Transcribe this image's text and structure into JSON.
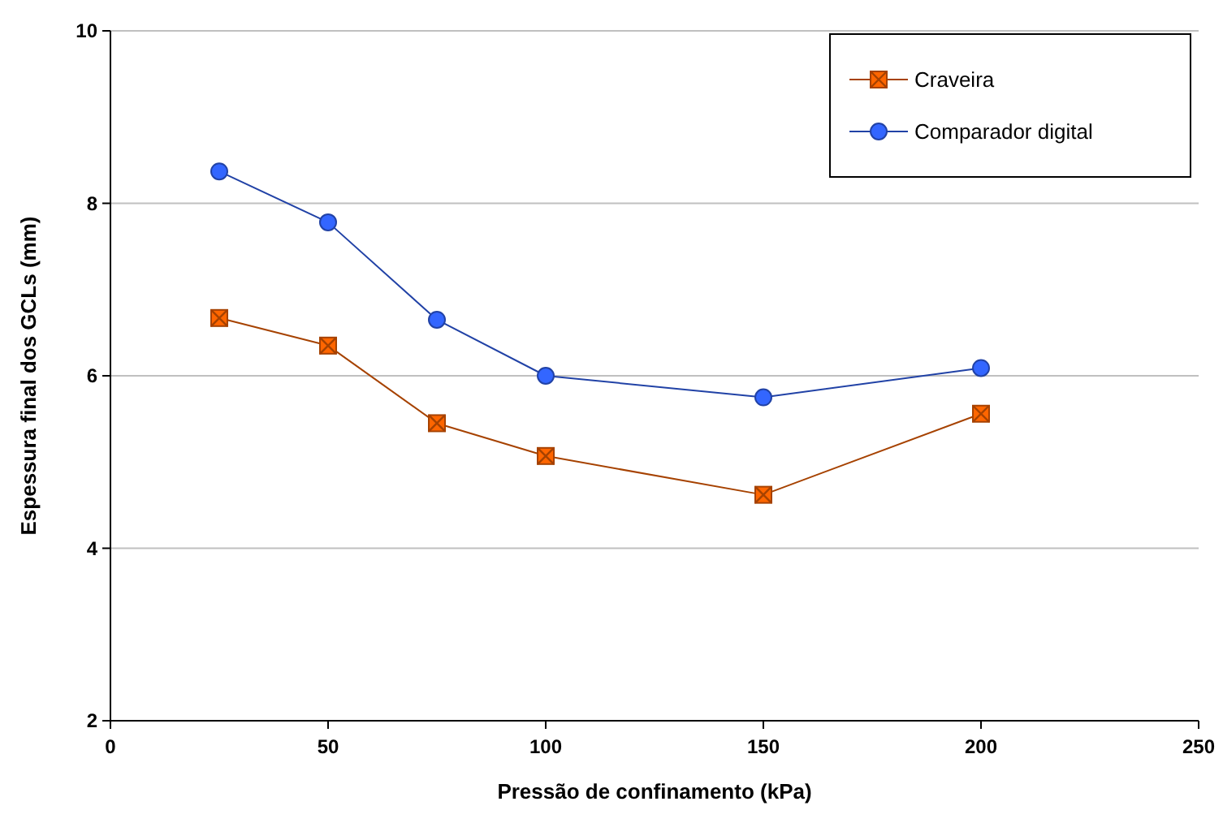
{
  "chart_data": {
    "type": "line",
    "xlabel": "Pressão de confinamento (kPa)",
    "ylabel": "Espessura final dos GCLs (mm)",
    "x": [
      25,
      50,
      75,
      100,
      150,
      200
    ],
    "series": [
      {
        "name": "Craveira",
        "color": "#ff6600",
        "marker": "square",
        "values": [
          6.67,
          6.35,
          5.45,
          5.07,
          4.62,
          5.56
        ]
      },
      {
        "name": "Comparador digital",
        "color": "#3366ff",
        "marker": "circle",
        "values": [
          8.37,
          7.78,
          6.65,
          6.0,
          5.75,
          6.09
        ]
      }
    ],
    "xlim": [
      0,
      250
    ],
    "xticks": [
      0,
      50,
      100,
      150,
      200,
      250
    ],
    "ylim": [
      2,
      10
    ],
    "yticks": [
      2,
      4,
      6,
      8,
      10
    ],
    "grid": "y",
    "legend": "top right"
  }
}
